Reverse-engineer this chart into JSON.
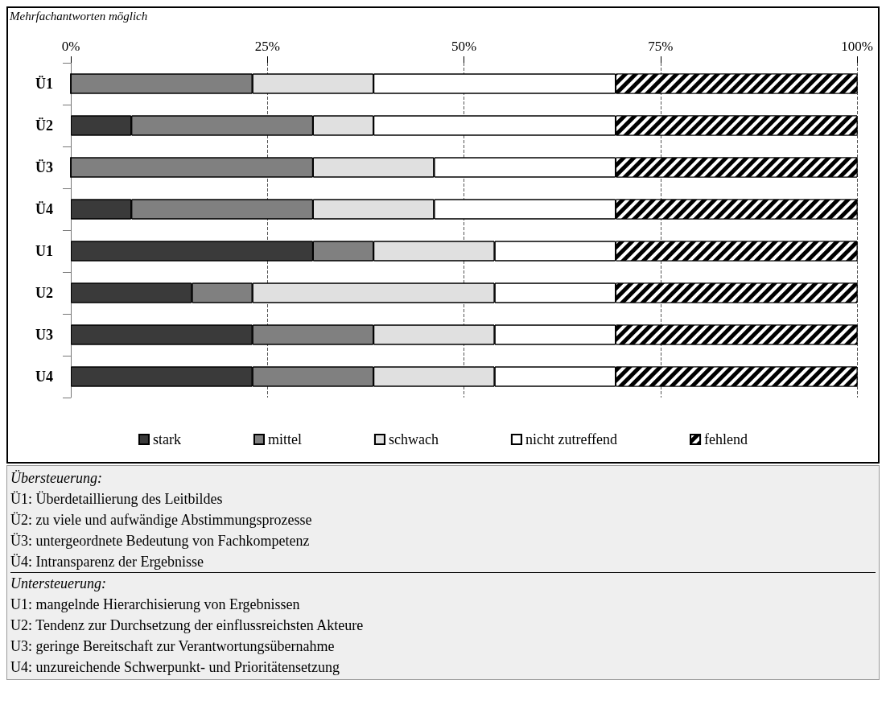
{
  "chart_data": {
    "type": "bar",
    "orientation": "horizontal",
    "stacked": true,
    "categories": [
      "Ü1",
      "Ü2",
      "Ü3",
      "Ü4",
      "U1",
      "U2",
      "U3",
      "U4"
    ],
    "series": [
      {
        "name": "stark",
        "color": "#3a3a3a",
        "values": [
          0,
          7.7,
          0,
          7.7,
          30.8,
          15.4,
          23.1,
          23.1
        ]
      },
      {
        "name": "mittel",
        "color": "#808080",
        "values": [
          23.1,
          23.1,
          30.8,
          23.1,
          7.7,
          7.7,
          15.4,
          15.4
        ]
      },
      {
        "name": "schwach",
        "color": "#e0e0e0",
        "values": [
          15.4,
          7.7,
          15.4,
          15.4,
          15.4,
          30.8,
          15.4,
          15.4
        ]
      },
      {
        "name": "nicht zutreffend",
        "color": "#ffffff",
        "values": [
          30.8,
          30.8,
          23.1,
          23.1,
          15.4,
          15.4,
          15.4,
          15.4
        ]
      },
      {
        "name": "fehlend",
        "color": "#000000",
        "values": [
          30.8,
          30.8,
          30.8,
          30.8,
          30.8,
          30.8,
          30.8,
          30.8
        ]
      }
    ],
    "xlim": [
      0,
      100
    ],
    "xticks": [
      {
        "value": 0,
        "label": "0%"
      },
      {
        "value": 25,
        "label": "25%"
      },
      {
        "value": 50,
        "label": "50%"
      },
      {
        "value": 75,
        "label": "75%"
      },
      {
        "value": 100,
        "label": "100%"
      }
    ],
    "grid": "x",
    "legend": "bottom",
    "annotations": [
      "Mehrfachantworten möglich",
      "Übersteuerung:",
      "Ü1: Überdetaillierung des Leitbildes",
      "Ü2: zu viele und aufwändige Abstimmungsprozesse",
      "Ü3: untergeordnete Bedeutung von Fachkompetenz",
      "Ü4: Intransparenz der Ergebnisse",
      "Untersteuerung:",
      "U1: mangelnde Hierarchisierung von Ergebnissen",
      "U2: Tendenz zur Durchsetzung der einflussreichsten Akteure",
      "U3: geringe Bereitschaft zur Verantwortungsübernahme",
      "U4: unzureichende Schwerpunkt- und Prioritätensetzung"
    ]
  }
}
